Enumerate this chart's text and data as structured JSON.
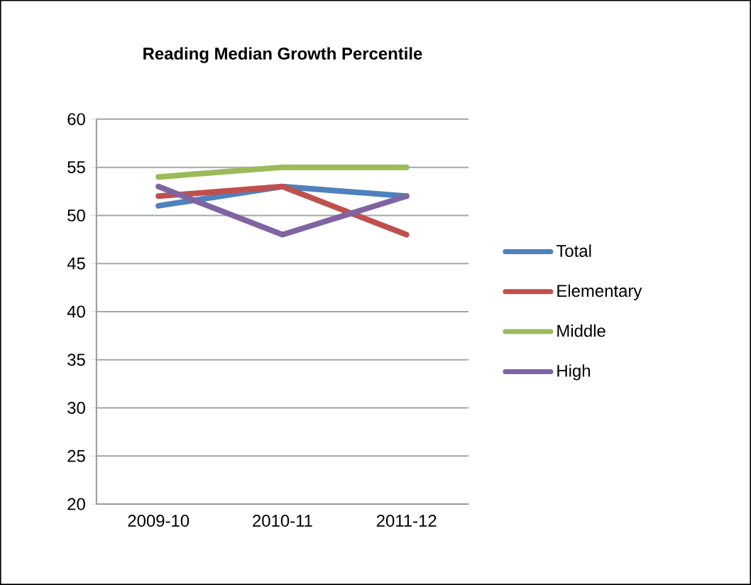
{
  "chart_data": {
    "type": "line",
    "title": "Reading Median Growth Percentile",
    "categories": [
      "2009-10",
      "2010-11",
      "2011-12"
    ],
    "series": [
      {
        "name": "Total",
        "color": "#4f81bd",
        "values": [
          51,
          53,
          52
        ]
      },
      {
        "name": "Elementary",
        "color": "#c0504d",
        "values": [
          52,
          53,
          48
        ]
      },
      {
        "name": "Middle",
        "color": "#9bbb59",
        "values": [
          54,
          55,
          55
        ]
      },
      {
        "name": "High",
        "color": "#8064a2",
        "values": [
          53,
          48,
          52
        ]
      }
    ],
    "ylim": [
      20,
      60
    ],
    "yticks": [
      20,
      25,
      30,
      35,
      40,
      45,
      50,
      55,
      60
    ],
    "grid": "y",
    "legend": "right",
    "marker": "none",
    "line_style": "solid"
  }
}
